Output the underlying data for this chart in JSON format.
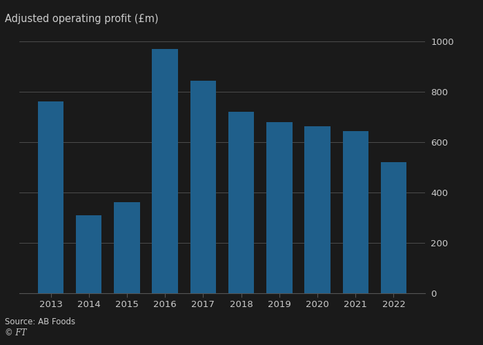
{
  "years": [
    "2013",
    "2014",
    "2015",
    "2016",
    "2017",
    "2018",
    "2019",
    "2020",
    "2021",
    "2022"
  ],
  "values": [
    762,
    310,
    362,
    970,
    843,
    720,
    680,
    662,
    645,
    521
  ],
  "bar_color": "#1f5f8b",
  "title": "Adjusted operating profit (£m)",
  "ylim": [
    0,
    1000
  ],
  "yticks": [
    0,
    200,
    400,
    600,
    800,
    1000
  ],
  "source_text": "Source: AB Foods",
  "ft_text": "© FT",
  "background_color": "#1a1a1a",
  "grid_color": "#555555",
  "plot_bg_color": "#1a1a1a",
  "text_color": "#cccccc",
  "spine_color": "#555555"
}
